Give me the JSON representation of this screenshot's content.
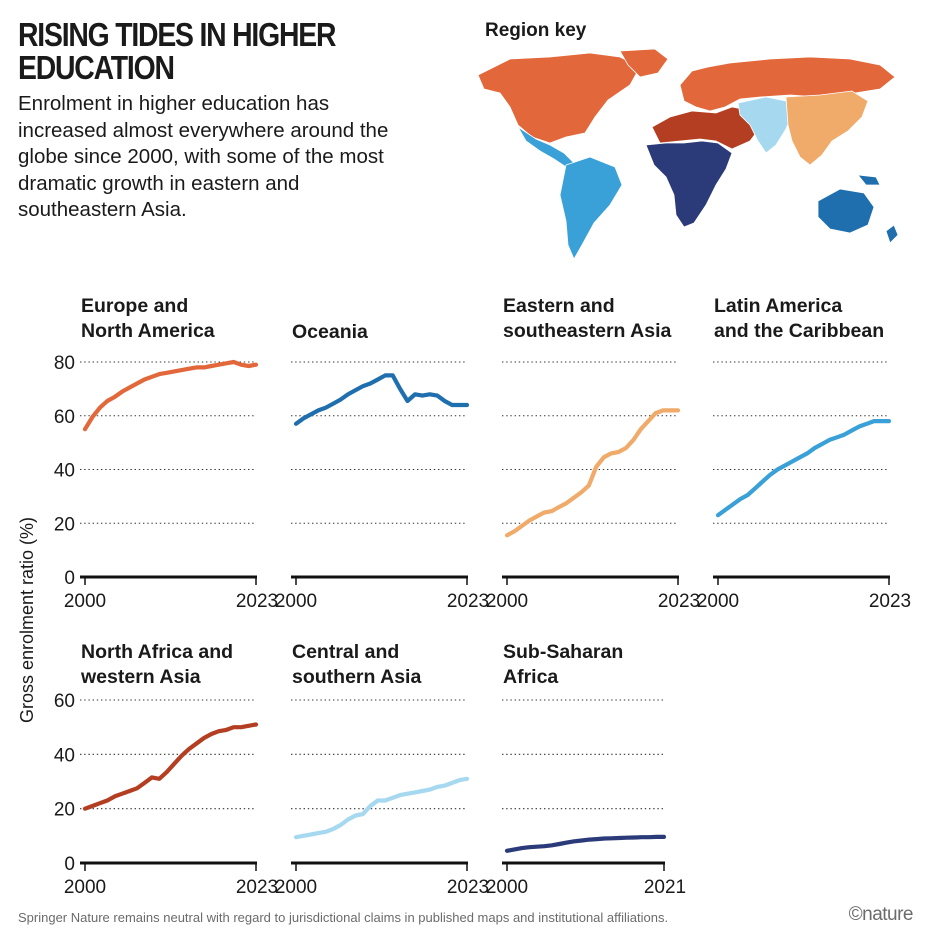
{
  "header": {
    "title": "RISING TIDES IN HIGHER EDUCATION",
    "subtitle": "Enrolment in higher education has increased almost everywhere around the globe since 2000, with some of the most dramatic growth in eastern and southeastern Asia."
  },
  "map": {
    "title": "Region key"
  },
  "colors": {
    "europe_north_america": "#e2673a",
    "oceania": "#1f6fae",
    "eastern_southeastern_asia": "#f0aa6a",
    "latin_america_caribbean": "#3aa0d8",
    "north_africa_western_asia": "#b43e22",
    "central_southern_asia": "#a6d8f0",
    "sub_saharan_africa": "#2b3a78"
  },
  "chart_data": [
    {
      "type": "line",
      "title": "Europe and North America",
      "color_key": "europe_north_america",
      "xlabel": "",
      "ylabel": "Gross enrolment ratio (%)",
      "xlim": [
        2000,
        2023
      ],
      "ylim": [
        0,
        80
      ],
      "xticks": [
        "2000",
        "2023"
      ],
      "yticks": [
        "0",
        "20",
        "40",
        "60",
        "80"
      ],
      "x": [
        2000,
        2001,
        2002,
        2003,
        2004,
        2005,
        2006,
        2007,
        2008,
        2009,
        2010,
        2011,
        2012,
        2013,
        2014,
        2015,
        2016,
        2017,
        2018,
        2019,
        2020,
        2021,
        2022,
        2023
      ],
      "y": [
        55,
        59.5,
        63,
        65.5,
        67,
        69,
        70.5,
        72,
        73.5,
        74.5,
        75.5,
        76,
        76.5,
        77,
        77.5,
        78,
        78,
        78.5,
        79,
        79.5,
        80,
        79,
        78.5,
        79
      ]
    },
    {
      "type": "line",
      "title": "Oceania",
      "color_key": "oceania",
      "xlabel": "",
      "ylabel": "",
      "xlim": [
        2000,
        2023
      ],
      "ylim": [
        0,
        80
      ],
      "xticks": [
        "2000",
        "2023"
      ],
      "yticks": [],
      "x": [
        2000,
        2001,
        2002,
        2003,
        2004,
        2005,
        2006,
        2007,
        2008,
        2009,
        2010,
        2011,
        2012,
        2013,
        2014,
        2015,
        2016,
        2017,
        2018,
        2019,
        2020,
        2021,
        2022,
        2023
      ],
      "y": [
        57,
        59,
        60.5,
        62,
        63,
        64.5,
        66,
        68,
        69.5,
        71,
        72,
        73.5,
        75,
        75,
        70,
        65.5,
        68,
        67.5,
        68,
        67.5,
        65.5,
        64,
        64,
        64
      ]
    },
    {
      "type": "line",
      "title": "Eastern and southeastern Asia",
      "color_key": "eastern_southeastern_asia",
      "xlabel": "",
      "ylabel": "",
      "xlim": [
        2000,
        2023
      ],
      "ylim": [
        0,
        80
      ],
      "xticks": [
        "2000",
        "2023"
      ],
      "yticks": [],
      "x": [
        2000,
        2001,
        2002,
        2003,
        2004,
        2005,
        2006,
        2007,
        2008,
        2009,
        2010,
        2011,
        2012,
        2013,
        2014,
        2015,
        2016,
        2017,
        2018,
        2019,
        2020,
        2021,
        2022,
        2023
      ],
      "y": [
        15.5,
        17,
        19,
        21,
        22.5,
        24,
        24.5,
        26,
        27.5,
        29.5,
        31.5,
        34,
        41,
        44.5,
        46,
        46.5,
        48,
        51,
        55,
        58,
        61,
        62,
        62,
        62
      ]
    },
    {
      "type": "line",
      "title": "Latin America and the Caribbean",
      "color_key": "latin_america_caribbean",
      "xlabel": "",
      "ylabel": "",
      "xlim": [
        2000,
        2023
      ],
      "ylim": [
        0,
        80
      ],
      "xticks": [
        "2000",
        "2023"
      ],
      "yticks": [],
      "x": [
        2000,
        2001,
        2002,
        2003,
        2004,
        2005,
        2006,
        2007,
        2008,
        2009,
        2010,
        2011,
        2012,
        2013,
        2014,
        2015,
        2016,
        2017,
        2018,
        2019,
        2020,
        2021,
        2022,
        2023
      ],
      "y": [
        23,
        25,
        27,
        29,
        30.5,
        33,
        35.5,
        38,
        40,
        41.5,
        43,
        44.5,
        46,
        48,
        49.5,
        51,
        52,
        53,
        54.5,
        56,
        57,
        58,
        58,
        58
      ]
    },
    {
      "type": "line",
      "title": "North Africa and western Asia",
      "color_key": "north_africa_western_asia",
      "xlabel": "",
      "ylabel": "",
      "xlim": [
        2000,
        2023
      ],
      "ylim": [
        0,
        60
      ],
      "xticks": [
        "2000",
        "2023"
      ],
      "yticks": [
        "0",
        "20",
        "40",
        "60"
      ],
      "x": [
        2000,
        2001,
        2002,
        2003,
        2004,
        2005,
        2006,
        2007,
        2008,
        2009,
        2010,
        2011,
        2012,
        2013,
        2014,
        2015,
        2016,
        2017,
        2018,
        2019,
        2020,
        2021,
        2022,
        2023
      ],
      "y": [
        20,
        21,
        22,
        23,
        24.5,
        25.5,
        26.5,
        27.5,
        29.5,
        31.5,
        31,
        33.5,
        36.5,
        39.5,
        42,
        44,
        46,
        47.5,
        48.5,
        49,
        50,
        50,
        50.5,
        51
      ]
    },
    {
      "type": "line",
      "title": "Central and southern Asia",
      "color_key": "central_southern_asia",
      "xlabel": "",
      "ylabel": "",
      "xlim": [
        2000,
        2023
      ],
      "ylim": [
        0,
        60
      ],
      "xticks": [
        "2000",
        "2023"
      ],
      "yticks": [],
      "x": [
        2000,
        2001,
        2002,
        2003,
        2004,
        2005,
        2006,
        2007,
        2008,
        2009,
        2010,
        2011,
        2012,
        2013,
        2014,
        2015,
        2016,
        2017,
        2018,
        2019,
        2020,
        2021,
        2022,
        2023
      ],
      "y": [
        9.5,
        10,
        10.5,
        11,
        11.5,
        12.5,
        14,
        16,
        17.5,
        18,
        21,
        23,
        23,
        24,
        25,
        25.5,
        26,
        26.5,
        27,
        28,
        28.5,
        29.5,
        30.5,
        31
      ]
    },
    {
      "type": "line",
      "title": "Sub-Saharan Africa",
      "color_key": "sub_saharan_africa",
      "xlabel": "",
      "ylabel": "",
      "xlim": [
        2000,
        2021
      ],
      "ylim": [
        0,
        60
      ],
      "xticks": [
        "2000",
        "2021"
      ],
      "yticks": [],
      "x": [
        2000,
        2001,
        2002,
        2003,
        2004,
        2005,
        2006,
        2007,
        2008,
        2009,
        2010,
        2011,
        2012,
        2013,
        2014,
        2015,
        2016,
        2017,
        2018,
        2019,
        2020,
        2021
      ],
      "y": [
        4.5,
        5,
        5.5,
        5.8,
        6,
        6.2,
        6.5,
        7,
        7.5,
        8,
        8.3,
        8.6,
        8.8,
        9,
        9.1,
        9.2,
        9.3,
        9.4,
        9.5,
        9.5,
        9.6,
        9.6
      ]
    }
  ],
  "footer": {
    "note": "Springer Nature remains neutral with regard to jurisdictional claims in published maps and institutional affiliations.",
    "brand": "©nature"
  }
}
